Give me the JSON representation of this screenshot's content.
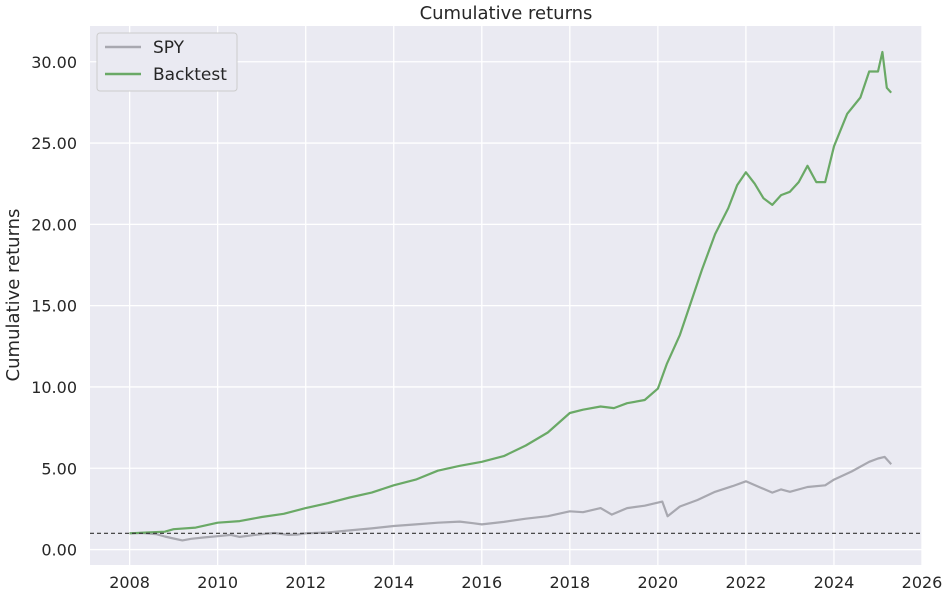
{
  "chart_data": {
    "type": "line",
    "title": "Cumulative returns",
    "xlabel": "",
    "ylabel": "Cumulative returns",
    "xlim": [
      2007.1,
      2026.0
    ],
    "ylim": [
      -0.95,
      32.2
    ],
    "x_ticks": [
      "2008",
      "2010",
      "2012",
      "2014",
      "2016",
      "2018",
      "2020",
      "2022",
      "2024",
      "2026"
    ],
    "y_ticks": [
      "0.00",
      "5.00",
      "10.00",
      "15.00",
      "20.00",
      "25.00",
      "30.00"
    ],
    "grid": true,
    "legend_position": "top-left",
    "reference_line": {
      "y": 1.0,
      "style": "dashed"
    },
    "series": [
      {
        "name": "SPY",
        "color": "#a8a8b0",
        "points": [
          [
            2008.0,
            1.0
          ],
          [
            2008.3,
            1.02
          ],
          [
            2008.6,
            0.95
          ],
          [
            2008.8,
            0.8
          ],
          [
            2009.0,
            0.68
          ],
          [
            2009.2,
            0.56
          ],
          [
            2009.4,
            0.66
          ],
          [
            2009.7,
            0.75
          ],
          [
            2010.0,
            0.82
          ],
          [
            2010.3,
            0.9
          ],
          [
            2010.5,
            0.78
          ],
          [
            2010.8,
            0.88
          ],
          [
            2011.0,
            0.95
          ],
          [
            2011.3,
            1.02
          ],
          [
            2011.6,
            0.9
          ],
          [
            2011.8,
            0.92
          ],
          [
            2012.0,
            1.0
          ],
          [
            2012.5,
            1.05
          ],
          [
            2013.0,
            1.18
          ],
          [
            2013.5,
            1.3
          ],
          [
            2014.0,
            1.45
          ],
          [
            2014.5,
            1.55
          ],
          [
            2015.0,
            1.65
          ],
          [
            2015.5,
            1.72
          ],
          [
            2015.8,
            1.62
          ],
          [
            2016.0,
            1.55
          ],
          [
            2016.5,
            1.7
          ],
          [
            2017.0,
            1.9
          ],
          [
            2017.5,
            2.05
          ],
          [
            2018.0,
            2.35
          ],
          [
            2018.3,
            2.3
          ],
          [
            2018.7,
            2.55
          ],
          [
            2018.95,
            2.15
          ],
          [
            2019.3,
            2.55
          ],
          [
            2019.7,
            2.7
          ],
          [
            2020.1,
            2.95
          ],
          [
            2020.22,
            2.05
          ],
          [
            2020.5,
            2.65
          ],
          [
            2020.9,
            3.05
          ],
          [
            2021.3,
            3.55
          ],
          [
            2021.7,
            3.9
          ],
          [
            2022.0,
            4.2
          ],
          [
            2022.3,
            3.85
          ],
          [
            2022.6,
            3.5
          ],
          [
            2022.8,
            3.7
          ],
          [
            2023.0,
            3.55
          ],
          [
            2023.4,
            3.85
          ],
          [
            2023.8,
            3.95
          ],
          [
            2024.0,
            4.3
          ],
          [
            2024.4,
            4.8
          ],
          [
            2024.8,
            5.4
          ],
          [
            2025.0,
            5.6
          ],
          [
            2025.15,
            5.7
          ],
          [
            2025.3,
            5.25
          ]
        ]
      },
      {
        "name": "Backtest",
        "color": "#6aa966",
        "points": [
          [
            2008.0,
            1.0
          ],
          [
            2008.4,
            1.05
          ],
          [
            2008.8,
            1.1
          ],
          [
            2009.0,
            1.25
          ],
          [
            2009.5,
            1.35
          ],
          [
            2010.0,
            1.65
          ],
          [
            2010.5,
            1.75
          ],
          [
            2011.0,
            2.0
          ],
          [
            2011.5,
            2.2
          ],
          [
            2012.0,
            2.55
          ],
          [
            2012.5,
            2.85
          ],
          [
            2013.0,
            3.2
          ],
          [
            2013.5,
            3.5
          ],
          [
            2014.0,
            3.95
          ],
          [
            2014.5,
            4.3
          ],
          [
            2015.0,
            4.85
          ],
          [
            2015.5,
            5.15
          ],
          [
            2016.0,
            5.4
          ],
          [
            2016.5,
            5.75
          ],
          [
            2017.0,
            6.4
          ],
          [
            2017.5,
            7.2
          ],
          [
            2018.0,
            8.4
          ],
          [
            2018.3,
            8.6
          ],
          [
            2018.7,
            8.8
          ],
          [
            2019.0,
            8.7
          ],
          [
            2019.3,
            9.0
          ],
          [
            2019.7,
            9.2
          ],
          [
            2020.0,
            9.9
          ],
          [
            2020.2,
            11.4
          ],
          [
            2020.5,
            13.2
          ],
          [
            2020.8,
            15.6
          ],
          [
            2021.0,
            17.2
          ],
          [
            2021.3,
            19.4
          ],
          [
            2021.6,
            21.0
          ],
          [
            2021.8,
            22.4
          ],
          [
            2022.0,
            23.2
          ],
          [
            2022.2,
            22.5
          ],
          [
            2022.4,
            21.6
          ],
          [
            2022.6,
            21.2
          ],
          [
            2022.8,
            21.8
          ],
          [
            2023.0,
            22.0
          ],
          [
            2023.2,
            22.6
          ],
          [
            2023.4,
            23.6
          ],
          [
            2023.6,
            22.6
          ],
          [
            2023.8,
            22.6
          ],
          [
            2024.0,
            24.8
          ],
          [
            2024.3,
            26.8
          ],
          [
            2024.6,
            27.8
          ],
          [
            2024.8,
            29.4
          ],
          [
            2025.0,
            29.4
          ],
          [
            2025.1,
            30.6
          ],
          [
            2025.2,
            28.4
          ],
          [
            2025.3,
            28.1
          ]
        ]
      }
    ]
  }
}
